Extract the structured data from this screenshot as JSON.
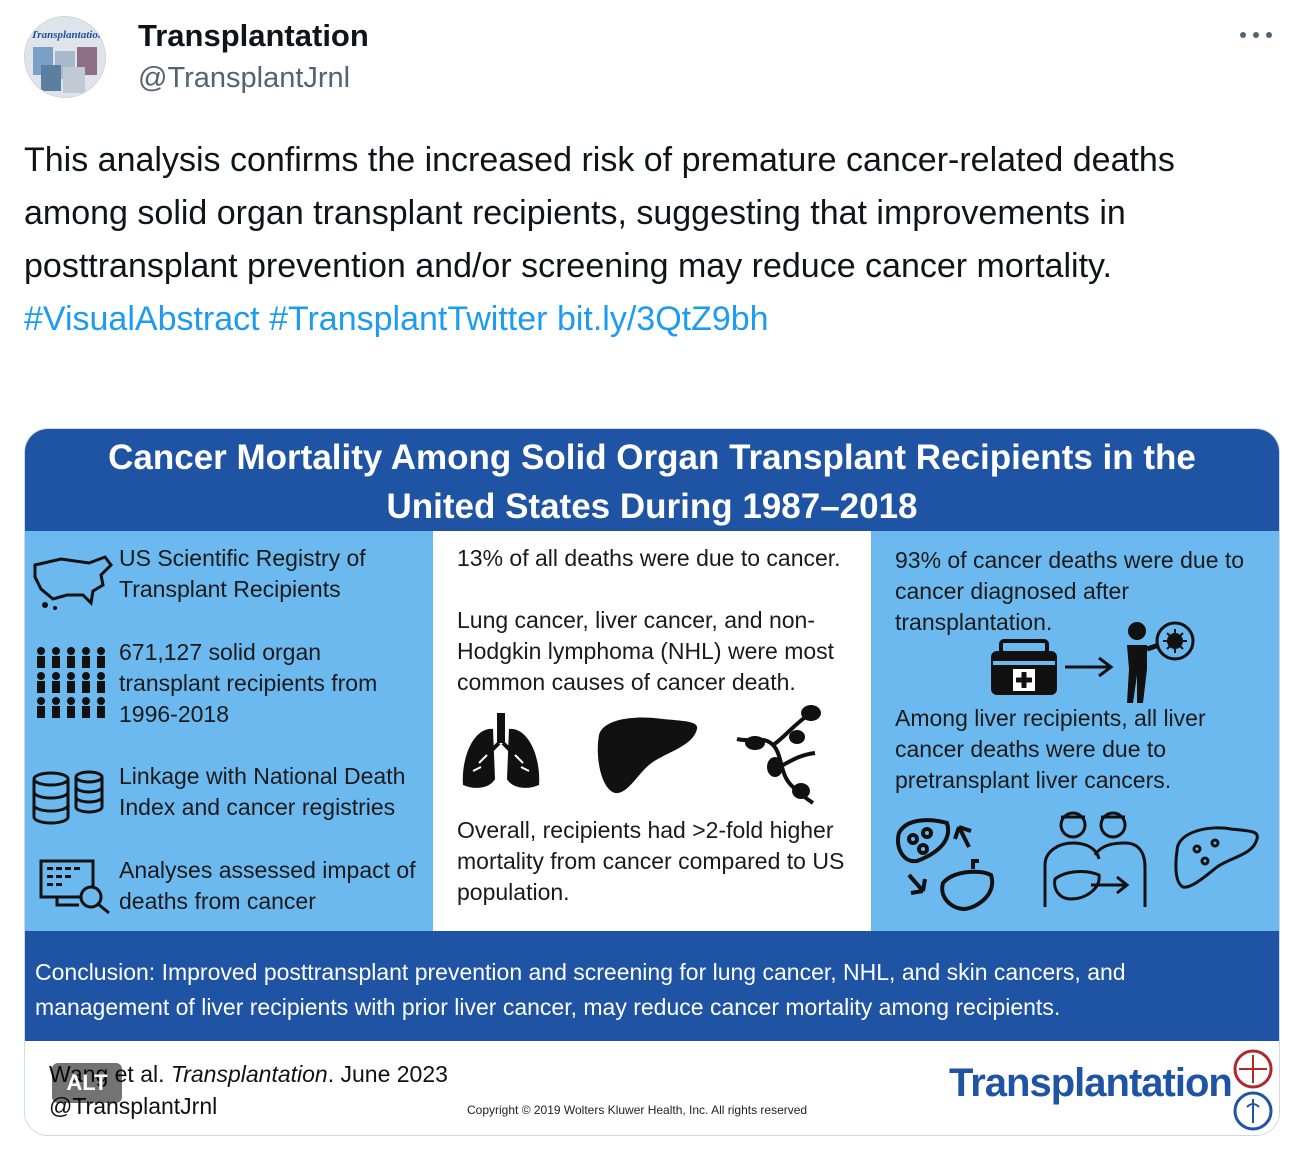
{
  "account": {
    "name": "Transplantation",
    "handle": "@TransplantJrnl",
    "avatar_masthead": "Transplantation"
  },
  "more_icon": "more-horizontal-icon",
  "tweet": {
    "text": "This analysis confirms the increased risk of premature cancer-related deaths among solid organ transplant recipients, suggesting that improvements in posttransplant prevention and/or screening may reduce cancer mortality. ",
    "hashtag1": "#VisualAbstract",
    "hashtag2": "#TransplantTwitter",
    "link": "bit.ly/3QtZ9bh"
  },
  "colors": {
    "link": "#1d9bf0",
    "banner": "#1f53a4",
    "panel_blue": "#6cb9ef"
  },
  "abstract": {
    "title_line1": "Cancer Mortality Among Solid Organ Transplant Recipients in the",
    "title_line2": "United States During 1987–2018",
    "left": {
      "item1": "US Scientific Registry of Transplant Recipients",
      "item2": "671,127 solid organ transplant recipients from 1996-2018",
      "item3": "Linkage with National Death Index and cancer registries",
      "item4": "Analyses assessed impact of deaths from cancer"
    },
    "middle": {
      "stat": "13% of all deaths were due to cancer.",
      "causes": "Lung  cancer, liver cancer, and non-Hodgkin lymphoma (NHL) were most common causes of cancer death.",
      "overall": "Overall, recipients had >2-fold higher mortality from cancer compared to US population."
    },
    "right": {
      "stat": "93% of cancer deaths were due to cancer diagnosed after transplantation.",
      "liver": "Among liver recipients, all liver cancer deaths were due to pretransplant liver cancers."
    },
    "conclusion": "Conclusion: Improved posttransplant prevention and screening for lung cancer, NHL, and skin cancers, and management of liver recipients with prior liver cancer, may reduce cancer mortality among recipients.",
    "citation_author": "Wang et al.",
    "citation_journal": "Transplantation",
    "citation_date": ". June 2023",
    "footer_handle": "@TransplantJrnl",
    "copyright": "Copyright © 2019  Wolters Kluwer Health, Inc. All rights reserved",
    "journal_logo": "Transplantation"
  },
  "alt_badge": "ALT"
}
